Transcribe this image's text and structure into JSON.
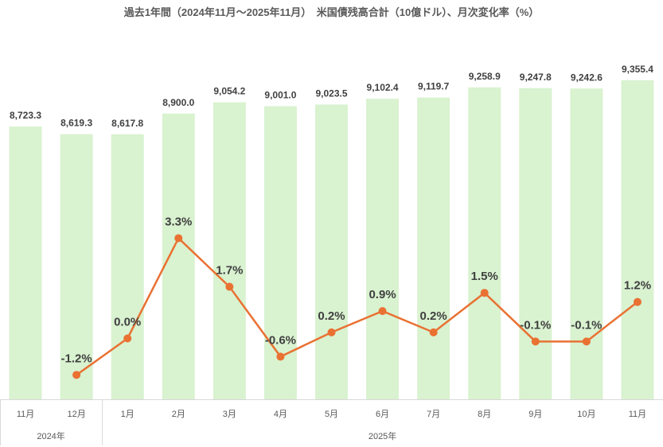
{
  "chart_data": {
    "type": "bar+line",
    "title": "過去1年間（2024年11月～2025年11月）　米国債残高合計（10億ドル）、月次変化率（%）",
    "categories": [
      "11月",
      "12月",
      "1月",
      "2月",
      "3月",
      "4月",
      "5月",
      "6月",
      "7月",
      "8月",
      "9月",
      "10月",
      "11月"
    ],
    "years": [
      {
        "label": "2024年",
        "span": 2
      },
      {
        "label": "2025年",
        "span": 11
      }
    ],
    "series": [
      {
        "name": "米国債残高合計（10億ドル）",
        "type": "bar",
        "color": "#d9f2d0",
        "values": [
          8723.3,
          8619.3,
          8617.8,
          8900.0,
          9054.2,
          9001.0,
          9023.5,
          9102.4,
          9119.7,
          9258.9,
          9247.8,
          9242.6,
          9355.4
        ],
        "labels": [
          "8,723.3",
          "8,619.3",
          "8,617.8",
          "8,900.0",
          "9,054.2",
          "9,001.0",
          "9,023.5",
          "9,102.4",
          "9,119.7",
          "9,258.9",
          "9,247.8",
          "9,242.6",
          "9,355.4"
        ]
      },
      {
        "name": "月次変化率（%）",
        "type": "line",
        "color": "#e97132",
        "values": [
          null,
          -1.2,
          0.0,
          3.3,
          1.7,
          -0.6,
          0.2,
          0.9,
          0.2,
          1.5,
          -0.1,
          -0.1,
          1.2
        ],
        "labels": [
          "",
          "-1.2%",
          "0.0%",
          "3.3%",
          "1.7%",
          "-0.6%",
          "0.2%",
          "0.9%",
          "0.2%",
          "1.5%",
          "-0.1%",
          "-0.1%",
          "1.2%"
        ]
      }
    ],
    "bar_axis_min": 5000,
    "grid": false,
    "legend": "none"
  }
}
